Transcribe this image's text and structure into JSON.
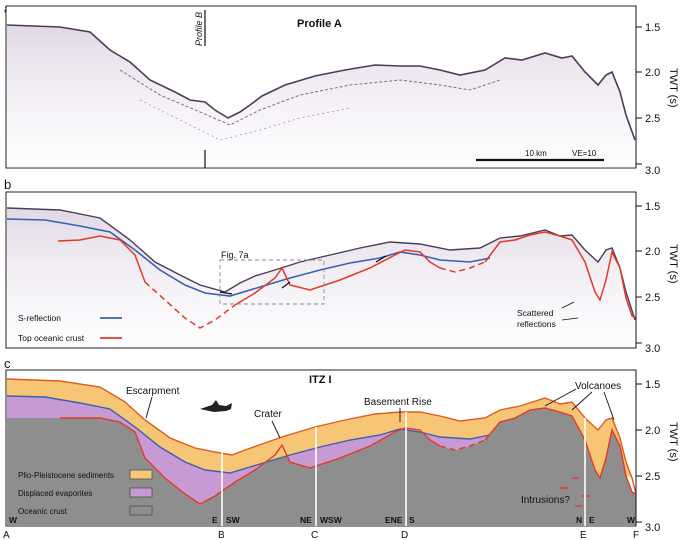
{
  "panels": {
    "a": {
      "letter": "a",
      "title": "Profile A",
      "profile_marker": "Profile B",
      "scalebar_label": "10 km",
      "ve_label": "VE=10"
    },
    "b": {
      "letter": "b",
      "fig_ref": "Fig. 7a",
      "legend": [
        {
          "label": "S-reflection",
          "color": "#3a5fb0"
        },
        {
          "label": "Top oceanic crust",
          "color": "#e23a2a"
        }
      ],
      "annotation": [
        "Scattered",
        "reflections"
      ]
    },
    "c": {
      "letter": "c",
      "title": "ITZ I",
      "annotations": {
        "escarpment": "Escarpment",
        "crater": "Crater",
        "basement_rise": "Basement Rise",
        "volcanoes": "Volcanoes",
        "intrusions": "Intrusions?"
      },
      "legend": [
        {
          "label": "Plio-Pleistocene sediments",
          "color": "#f6c676"
        },
        {
          "label": "Displaced evaporites",
          "color": "#c89ad3"
        },
        {
          "label": "Oceanic crust",
          "color": "#8f8e8e"
        }
      ],
      "directions": [
        "W",
        "E",
        "SW",
        "NE",
        "WSW",
        "ENE",
        "S",
        "N",
        "E",
        "W"
      ]
    }
  },
  "axis": {
    "label": "TWT (s)",
    "ticks": [
      "1.5",
      "2.0",
      "2.5",
      "3.0"
    ]
  },
  "bottom_labels": [
    "A",
    "B",
    "C",
    "D",
    "E",
    "F"
  ],
  "colors": {
    "seismic": "#5c4a66",
    "s_reflection": "#3a5fb0",
    "top_crust": "#e23a2a",
    "sediment": "#f6c676",
    "evaporite": "#c89ad3",
    "crust": "#8f8e8e"
  }
}
